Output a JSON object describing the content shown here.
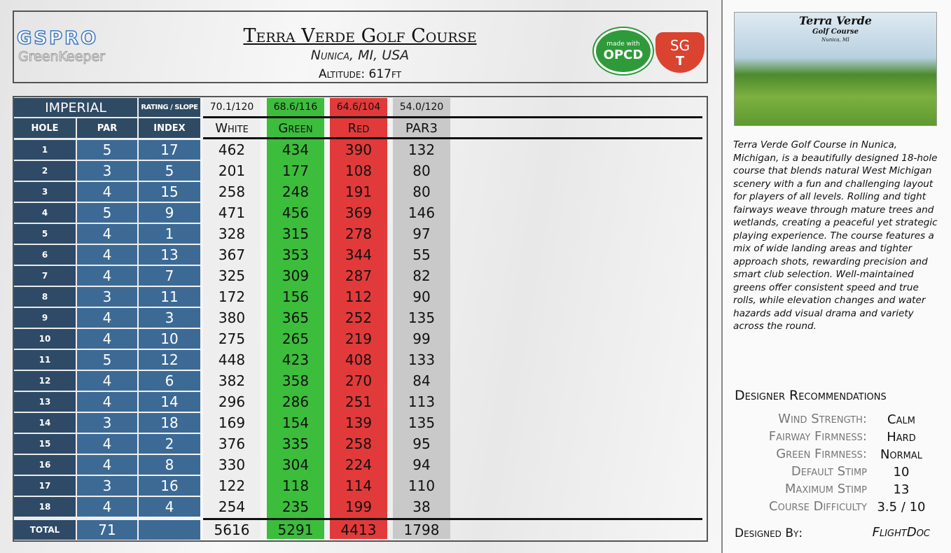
{
  "header": {
    "logo": {
      "brand": "GSPRO",
      "product": "GreenKeeper"
    },
    "title": "Terra Verde Golf Course",
    "location": "Nunica, MI, USA",
    "altitude": "Altitude: 617ft",
    "badges": {
      "opcd_top": "made with",
      "opcd": "OPCD",
      "sgt_top": "SG",
      "sgt_bottom": "T"
    }
  },
  "image": {
    "title": "Terra Verde",
    "subtitle": "Golf Course",
    "location": "Nunica, MI"
  },
  "description": "Terra Verde Golf Course in Nunica, Michigan, is a beautifully designed 18-hole course that blends natural West Michigan scenery with a fun and challenging layout for players of all levels. Rolling and tight fairways weave through mature trees and wetlands, creating a peaceful yet strategic playing experience. The course features a mix of wide landing areas and tighter approach shots, rewarding precision and smart club selection. Well-maintained greens offer consistent speed and true rolls, while elevation changes and water hazards add visual drama and variety across the round.",
  "table": {
    "title": "IMPERIAL",
    "rating_label": "RATING / SLOPE",
    "ratings": [
      "70.1/120",
      "68.6/116",
      "64.6/104",
      "54.0/120"
    ],
    "columns": [
      "HOLE",
      "PAR",
      "INDEX",
      "White",
      "Green",
      "Red",
      "PAR3"
    ],
    "rows": [
      [
        1,
        5,
        17,
        462,
        434,
        390,
        132
      ],
      [
        2,
        3,
        5,
        201,
        177,
        108,
        80
      ],
      [
        3,
        4,
        15,
        258,
        248,
        191,
        80
      ],
      [
        4,
        5,
        9,
        471,
        456,
        369,
        146
      ],
      [
        5,
        4,
        1,
        328,
        315,
        278,
        97
      ],
      [
        6,
        4,
        13,
        367,
        353,
        344,
        55
      ],
      [
        7,
        4,
        7,
        325,
        309,
        287,
        82
      ],
      [
        8,
        3,
        11,
        172,
        156,
        112,
        90
      ],
      [
        9,
        4,
        3,
        380,
        365,
        252,
        135
      ],
      [
        10,
        4,
        10,
        275,
        265,
        219,
        99
      ],
      [
        11,
        5,
        12,
        448,
        423,
        408,
        133
      ],
      [
        12,
        4,
        6,
        382,
        358,
        270,
        84
      ],
      [
        13,
        4,
        14,
        296,
        286,
        251,
        113
      ],
      [
        14,
        3,
        18,
        169,
        154,
        139,
        135
      ],
      [
        15,
        4,
        2,
        376,
        335,
        258,
        95
      ],
      [
        16,
        4,
        8,
        330,
        304,
        224,
        94
      ],
      [
        17,
        3,
        16,
        122,
        118,
        114,
        110
      ],
      [
        18,
        4,
        4,
        254,
        235,
        199,
        38
      ]
    ],
    "total": {
      "label": "TOTAL",
      "par": 71,
      "yardages": [
        5616,
        5291,
        4413,
        1798
      ]
    }
  },
  "recommendations": {
    "title": "Designer Recommendations",
    "items": [
      {
        "label": "Wind Strength:",
        "value": "Calm"
      },
      {
        "label": "Fairway Firmness:",
        "value": "Hard"
      },
      {
        "label": "Green Firmness:",
        "value": "Normal"
      },
      {
        "label": "Default Stimp",
        "value": "10"
      },
      {
        "label": "Maximum Stimp",
        "value": "13"
      },
      {
        "label": "Course Difficulty",
        "value": "3.5 / 10"
      }
    ]
  },
  "designer": {
    "label": "Designed By:",
    "name": "FlightDoc"
  }
}
